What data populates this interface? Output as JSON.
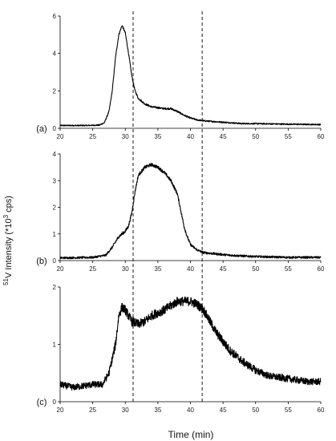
{
  "chart_data": {
    "type": "line",
    "xlabel": "Time (min)",
    "ylabel": {
      "prefix": "",
      "superscript": "51",
      "main": "V Intensity (*10",
      "exp": "3",
      "suffix": " cps)"
    },
    "xlim": [
      20,
      60
    ],
    "xticks": [
      20,
      25,
      30,
      35,
      40,
      45,
      50,
      55,
      60
    ],
    "reference_lines_x": [
      31.2,
      41.8
    ],
    "grid": false,
    "legend": "none",
    "line_color": "#000000",
    "panels": [
      {
        "label": "(a)",
        "ylim": [
          0,
          6
        ],
        "yticks": [
          0,
          2,
          4,
          6
        ],
        "series": [
          {
            "x": [
              20,
              24,
              26,
              26.8,
              27.5,
              28,
              28.5,
              29,
              29.5,
              30,
              30.5,
              31,
              31.5,
              32,
              33,
              34,
              35,
              36,
              37,
              38,
              39,
              40,
              41,
              42,
              44,
              46,
              48,
              50,
              55,
              60
            ],
            "values": [
              0.15,
              0.15,
              0.17,
              0.3,
              0.9,
              2.0,
              3.8,
              5.0,
              5.5,
              5.1,
              4.0,
              2.8,
              2.0,
              1.6,
              1.3,
              1.15,
              1.1,
              1.05,
              1.05,
              0.9,
              0.7,
              0.55,
              0.45,
              0.4,
              0.35,
              0.3,
              0.25,
              0.25,
              0.22,
              0.2
            ],
            "noise": 0.05
          }
        ]
      },
      {
        "label": "(b)",
        "ylim": [
          0,
          4
        ],
        "yticks": [
          0,
          1,
          2,
          3,
          4
        ],
        "series": [
          {
            "x": [
              20,
              25,
              27,
              28,
              29,
              30,
              30.5,
              31,
              31.5,
              32,
              33,
              34,
              35,
              36,
              37,
              38,
              38.5,
              39,
              39.5,
              40,
              41,
              42,
              44,
              46,
              50,
              55,
              60
            ],
            "values": [
              0.1,
              0.12,
              0.2,
              0.5,
              0.9,
              1.1,
              1.3,
              1.8,
              2.6,
              3.2,
              3.5,
              3.6,
              3.5,
              3.3,
              3.0,
              2.5,
              1.9,
              1.3,
              0.9,
              0.6,
              0.4,
              0.3,
              0.25,
              0.2,
              0.15,
              0.12,
              0.12
            ],
            "noise": 0.06
          }
        ]
      },
      {
        "label": "(c)",
        "ylim": [
          0,
          2
        ],
        "yticks": [
          0,
          1,
          2
        ],
        "series": [
          {
            "x": [
              20,
              22,
              25,
              26.5,
              27.5,
              28.5,
              29,
              29.5,
              30,
              30.5,
              31,
              32,
              33,
              34,
              36,
              38,
              40,
              41,
              42,
              43,
              44,
              46,
              48,
              50,
              52,
              55,
              58,
              60
            ],
            "values": [
              0.3,
              0.25,
              0.3,
              0.3,
              0.5,
              1.0,
              1.5,
              1.65,
              1.6,
              1.5,
              1.4,
              1.35,
              1.4,
              1.5,
              1.6,
              1.75,
              1.75,
              1.7,
              1.6,
              1.4,
              1.2,
              0.9,
              0.7,
              0.55,
              0.45,
              0.4,
              0.35,
              0.35
            ],
            "noise": 0.08
          }
        ]
      }
    ]
  }
}
